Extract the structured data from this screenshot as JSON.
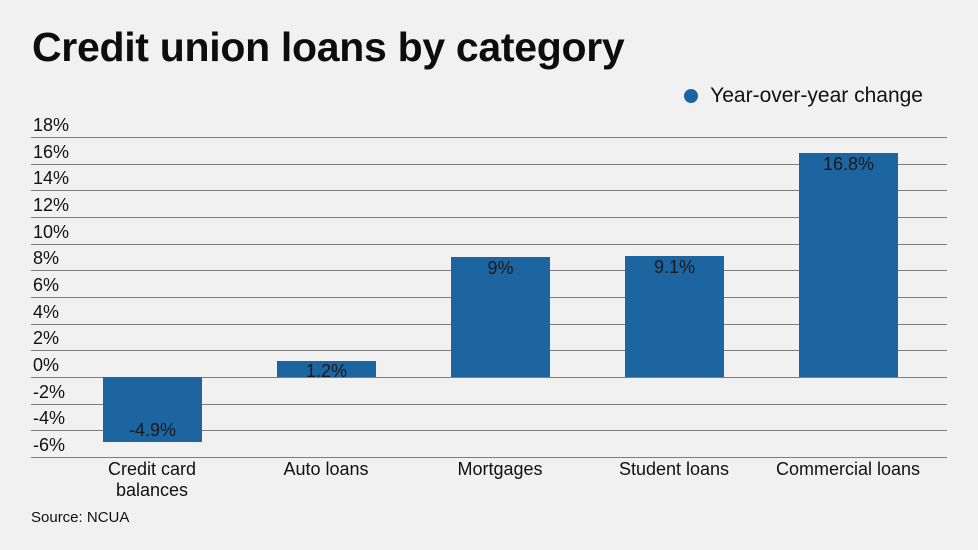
{
  "header": {
    "title": "Credit union loans by category"
  },
  "legend": {
    "label": "Year-over-year change",
    "color": "#1c65a0"
  },
  "footer": {
    "source": "Source: NCUA"
  },
  "axis": {
    "yticks": [
      "18%",
      "16%",
      "14%",
      "12%",
      "10%",
      "8%",
      "6%",
      "4%",
      "2%",
      "0%",
      "-2%",
      "-4%",
      "-6%"
    ]
  },
  "bars": [
    {
      "category_line1": "Credit card",
      "category_line2": "balances",
      "label": "-4.9%"
    },
    {
      "category_line1": "Auto loans",
      "category_line2": "",
      "label": "1.2%"
    },
    {
      "category_line1": "Mortgages",
      "category_line2": "",
      "label": "9%"
    },
    {
      "category_line1": "Student loans",
      "category_line2": "",
      "label": "9.1%"
    },
    {
      "category_line1": "Commercial loans",
      "category_line2": "",
      "label": "16.8%"
    }
  ],
  "chart_data": {
    "type": "bar",
    "title": "Credit union loans by category",
    "categories": [
      "Credit card balances",
      "Auto loans",
      "Mortgages",
      "Student loans",
      "Commercial loans"
    ],
    "series": [
      {
        "name": "Year-over-year change",
        "values": [
          -4.9,
          1.2,
          9.0,
          9.1,
          16.8
        ],
        "color": "#1c65a0"
      }
    ],
    "data_labels": [
      "-4.9%",
      "1.2%",
      "9%",
      "9.1%",
      "16.8%"
    ],
    "xlabel": "",
    "ylabel": "",
    "ylim": [
      -6,
      18
    ],
    "ytick_step": 2,
    "ytick_format": "percent",
    "grid": true,
    "legend_position": "top-right",
    "source": "Source: NCUA"
  }
}
